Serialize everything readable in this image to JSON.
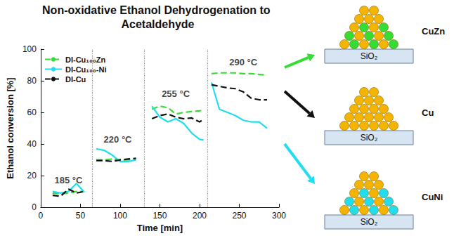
{
  "chart_data": {
    "type": "line",
    "title": "Non-oxidative Ethanol Dehydrogenation to Acetaldehyde",
    "x_label": "Time [min]",
    "y_label": "Ethanol conversion [%]",
    "x": [
      15,
      25,
      35,
      45,
      55,
      65,
      70,
      80,
      90,
      100,
      110,
      120,
      130,
      140,
      150,
      160,
      170,
      180,
      190,
      200,
      205,
      210,
      215,
      225,
      235,
      245,
      255,
      265,
      275,
      285
    ],
    "series": [
      {
        "name": "DI-Cu₁₀₀Zn",
        "color": "#33dd33",
        "line_style": "dashed",
        "values": [
          9,
          8.5,
          9,
          10,
          10,
          null,
          30,
          30,
          30.5,
          30,
          30,
          30.5,
          null,
          62,
          64,
          63,
          59,
          60,
          60.5,
          61,
          61.5,
          null,
          84.5,
          85,
          85,
          85,
          84.5,
          84.5,
          84,
          83.5
        ]
      },
      {
        "name": "DI-Cu₁₀₀-Ni",
        "color": "#22ddee",
        "line_style": "solid",
        "values": [
          10,
          9,
          10,
          15,
          9.5,
          null,
          37,
          36,
          33,
          29,
          29,
          30,
          null,
          64,
          57,
          54,
          56,
          53,
          47,
          43,
          42.5,
          null,
          79,
          62,
          60,
          58,
          55,
          54,
          54,
          50
        ]
      },
      {
        "name": "DI-Cu",
        "color": "#111111",
        "line_style": "dashed",
        "values": [
          7.5,
          7,
          11.5,
          9,
          10,
          null,
          29.5,
          29.5,
          29,
          30,
          30.5,
          31,
          null,
          56,
          58,
          59,
          57,
          56,
          56.5,
          54,
          55.5,
          null,
          77.5,
          76.5,
          75.5,
          75,
          73,
          69,
          68,
          68
        ]
      }
    ],
    "xlim": [
      0,
      300
    ],
    "xticks": [
      0,
      50,
      100,
      150,
      200,
      250,
      300
    ],
    "ylim": [
      0,
      100
    ],
    "yticks": [
      0,
      20,
      40,
      60,
      80,
      100
    ],
    "grid": false,
    "legend": "upper left",
    "dividers": [
      65,
      130,
      210
    ],
    "annotations": [
      {
        "text": "185 °C",
        "x": 35,
        "y": 17
      },
      {
        "text": "220 °C",
        "x": 97,
        "y": 43
      },
      {
        "text": "255 °C",
        "x": 170,
        "y": 72
      },
      {
        "text": "290 °C",
        "x": 255,
        "y": 92
      }
    ],
    "schematics": [
      {
        "label": "CuZn",
        "support": "SiO₂",
        "base_color": "#f5b400",
        "color": "#33dd33",
        "arrow_color": "#33dd33"
      },
      {
        "label": "Cu",
        "support": "SiO₂",
        "base_color": "#f5b400",
        "color": null,
        "arrow_color": "#111111"
      },
      {
        "label": "CuNi",
        "support": "SiO₂",
        "base_color": "#f5b400",
        "color": "#22ddee",
        "arrow_color": "#22ddee"
      }
    ]
  }
}
